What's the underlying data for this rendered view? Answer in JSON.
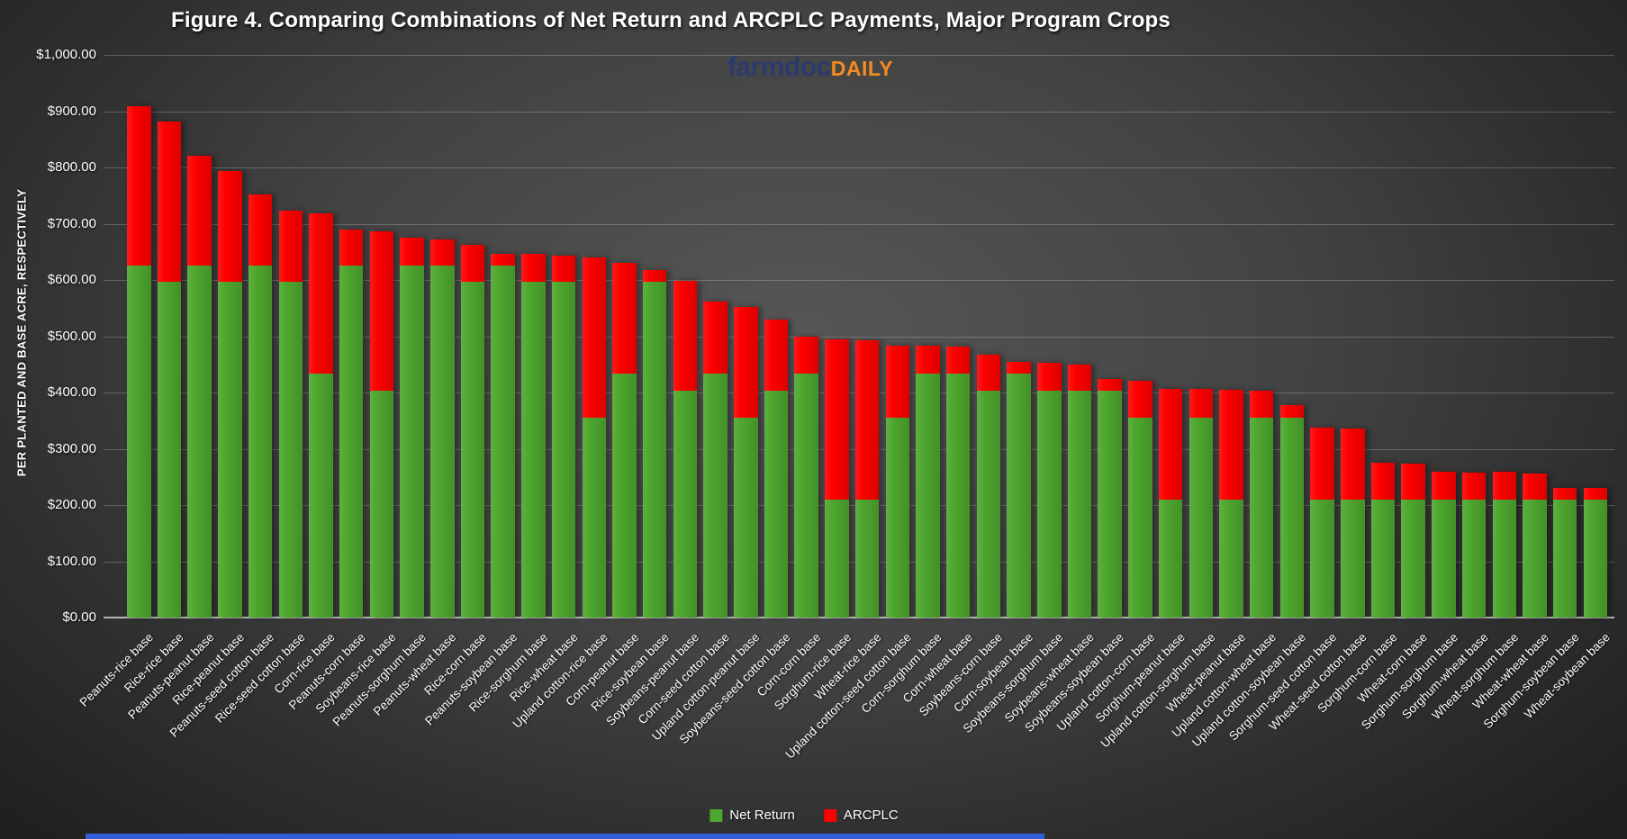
{
  "title": "Figure 4. Comparing Combinations of Net Return and ARCPLC Payments, Major Program Crops",
  "logo": {
    "part1": "farmdoc",
    "part2": "DAILY"
  },
  "y_axis": {
    "title": "PER PLANTED AND BASE ACRE, RESPECTIVELY",
    "tick_labels": [
      "$1,000.00",
      "$900.00",
      "$800.00",
      "$700.00",
      "$600.00",
      "$500.00",
      "$400.00",
      "$300.00",
      "$200.00",
      "$100.00",
      "$0.00"
    ]
  },
  "legend": [
    {
      "label": "Net Return",
      "color": "#4ea72e"
    },
    {
      "label": "ARCPLC",
      "color": "#fe0000"
    }
  ],
  "colors": {
    "net_return_green": "#4ea72e",
    "arcplc_red": "#fe0000",
    "logo_navy": "#2b3a6e",
    "logo_orange": "#f68b1f",
    "bottom_strip_blue": "#2f5fd8",
    "text": "#ffffff"
  },
  "chart_data": {
    "type": "bar",
    "stacked": true,
    "title": "Figure 4. Comparing Combinations of Net Return and ARCPLC Payments, Major Program Crops",
    "xlabel": "",
    "ylabel": "PER PLANTED AND BASE ACRE, RESPECTIVELY",
    "ylim": [
      0,
      1000
    ],
    "y_tick_step": 100,
    "grid": true,
    "legend_position": "bottom",
    "categories": [
      "Peanuts-rice base",
      "Rice-rice base",
      "Peanuts-peanut base",
      "Rice-peanut base",
      "Peanuts-seed cotton base",
      "Rice-seed cotton base",
      "Corn-rice base",
      "Peanuts-corn base",
      "Soybeans-rice base",
      "Peanuts-sorghum base",
      "Peanuts-wheat base",
      "Rice-corn base",
      "Peanuts-soybean base",
      "Rice-sorghum base",
      "Rice-wheat base",
      "Upland cotton-rice base",
      "Corn-peanut base",
      "Rice-soybean base",
      "Soybeans-peanut base",
      "Corn-seed cotton base",
      "Upland cotton-peanut base",
      "Soybeans-seed cotton base",
      "Corn-corn base",
      "Sorghum-rice base",
      "Wheat-rice base",
      "Upland cotton-seed cotton base",
      "Corn-sorghum base",
      "Corn-wheat base",
      "Soybeans-corn base",
      "Corn-soybean base",
      "Soybeans-sorghum base",
      "Soybeans-wheat base",
      "Soybeans-soybean base",
      "Upland cotton-corn base",
      "Sorghum-peanut base",
      "Upland cotton-sorghum base",
      "Wheat-peanut base",
      "Upland cotton-wheat base",
      "Upland cotton-soybean base",
      "Sorghum-seed cotton base",
      "Wheat-seed cotton base",
      "Sorghum-corn base",
      "Wheat-corn base",
      "Sorghum-sorghum base",
      "Sorghum-wheat base",
      "Wheat-sorghum base",
      "Wheat-wheat base",
      "Sorghum-soybean base",
      "Wheat-soybean base"
    ],
    "series": [
      {
        "name": "Net Return",
        "color": "#4ea72e",
        "values": [
          625,
          597,
          625,
          597,
          625,
          597,
          434,
          625,
          403,
          625,
          625,
          597,
          625,
          597,
          597,
          356,
          434,
          597,
          403,
          434,
          356,
          403,
          434,
          210,
          209,
          356,
          434,
          434,
          403,
          434,
          403,
          403,
          403,
          356,
          210,
          356,
          209,
          356,
          356,
          210,
          209,
          210,
          209,
          210,
          210,
          209,
          209,
          210,
          209
        ]
      },
      {
        "name": "ARCPLC",
        "color": "#fe0000",
        "values": [
          284,
          284,
          196,
          196,
          127,
          127,
          284,
          65,
          284,
          50,
          47,
          65,
          21,
          50,
          47,
          284,
          196,
          21,
          196,
          127,
          196,
          127,
          65,
          284,
          284,
          127,
          50,
          47,
          65,
          21,
          50,
          47,
          21,
          65,
          196,
          50,
          196,
          47,
          21,
          127,
          127,
          65,
          65,
          50,
          47,
          50,
          47,
          21,
          21
        ]
      }
    ]
  }
}
